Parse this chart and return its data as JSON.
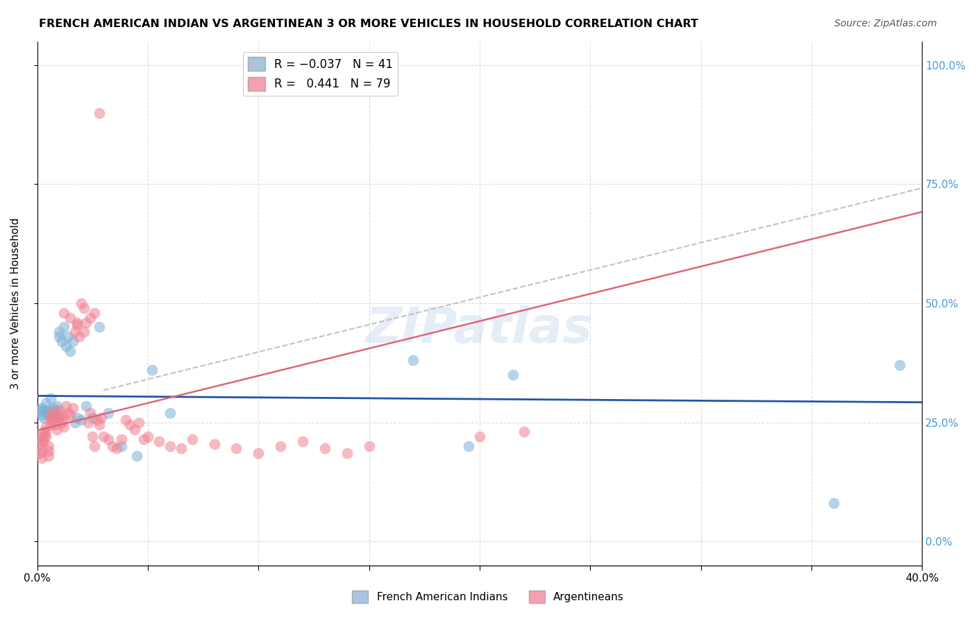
{
  "title": "FRENCH AMERICAN INDIAN VS ARGENTINEAN 3 OR MORE VEHICLES IN HOUSEHOLD CORRELATION CHART",
  "source": "Source: ZipAtlas.com",
  "ylabel": "3 or more Vehicles in Household",
  "ytick_values": [
    0.0,
    0.25,
    0.5,
    0.75,
    1.0
  ],
  "xlim": [
    0.0,
    0.4
  ],
  "ylim": [
    -0.05,
    1.05
  ],
  "blue_R": -0.037,
  "pink_R": 0.441,
  "blue_color": "#7bafd4",
  "pink_color": "#f08090",
  "blue_line_color": "#2255aa",
  "pink_line_color": "#dd6677",
  "gray_dash_color": "#bbbbbb",
  "watermark": "ZIPatlas",
  "blue_legend_color": "#a8c4e0",
  "pink_legend_color": "#f4a0b0",
  "blue_points_x": [
    0.001,
    0.002,
    0.002,
    0.003,
    0.003,
    0.004,
    0.004,
    0.005,
    0.005,
    0.006,
    0.006,
    0.007,
    0.007,
    0.008,
    0.008,
    0.009,
    0.009,
    0.01,
    0.01,
    0.011,
    0.012,
    0.013,
    0.014,
    0.015,
    0.016,
    0.017,
    0.018,
    0.02,
    0.022,
    0.025,
    0.028,
    0.032,
    0.038,
    0.045,
    0.052,
    0.06,
    0.17,
    0.195,
    0.215,
    0.36,
    0.39
  ],
  "blue_points_y": [
    0.275,
    0.28,
    0.265,
    0.275,
    0.26,
    0.29,
    0.27,
    0.265,
    0.275,
    0.26,
    0.3,
    0.27,
    0.28,
    0.265,
    0.275,
    0.26,
    0.285,
    0.43,
    0.44,
    0.42,
    0.45,
    0.41,
    0.43,
    0.4,
    0.42,
    0.25,
    0.26,
    0.255,
    0.285,
    0.26,
    0.45,
    0.27,
    0.2,
    0.18,
    0.36,
    0.27,
    0.38,
    0.2,
    0.35,
    0.08,
    0.37
  ],
  "pink_points_x": [
    0.001,
    0.001,
    0.001,
    0.002,
    0.002,
    0.002,
    0.003,
    0.003,
    0.003,
    0.004,
    0.004,
    0.004,
    0.005,
    0.005,
    0.005,
    0.006,
    0.006,
    0.006,
    0.007,
    0.007,
    0.008,
    0.008,
    0.009,
    0.009,
    0.01,
    0.01,
    0.011,
    0.011,
    0.012,
    0.012,
    0.013,
    0.014,
    0.015,
    0.016,
    0.017,
    0.018,
    0.019,
    0.02,
    0.021,
    0.022,
    0.023,
    0.024,
    0.025,
    0.026,
    0.027,
    0.028,
    0.029,
    0.03,
    0.032,
    0.034,
    0.036,
    0.038,
    0.04,
    0.042,
    0.044,
    0.046,
    0.048,
    0.05,
    0.055,
    0.06,
    0.065,
    0.07,
    0.08,
    0.09,
    0.1,
    0.11,
    0.12,
    0.13,
    0.14,
    0.15,
    0.012,
    0.015,
    0.018,
    0.021,
    0.024,
    0.026,
    0.028,
    0.2,
    0.22
  ],
  "pink_points_y": [
    0.22,
    0.2,
    0.185,
    0.21,
    0.19,
    0.175,
    0.23,
    0.22,
    0.21,
    0.24,
    0.23,
    0.22,
    0.19,
    0.18,
    0.2,
    0.265,
    0.255,
    0.245,
    0.27,
    0.26,
    0.255,
    0.245,
    0.235,
    0.265,
    0.275,
    0.26,
    0.25,
    0.265,
    0.24,
    0.255,
    0.285,
    0.27,
    0.265,
    0.28,
    0.44,
    0.46,
    0.43,
    0.5,
    0.49,
    0.46,
    0.25,
    0.27,
    0.22,
    0.2,
    0.255,
    0.245,
    0.26,
    0.22,
    0.215,
    0.2,
    0.195,
    0.215,
    0.255,
    0.245,
    0.235,
    0.25,
    0.215,
    0.22,
    0.21,
    0.2,
    0.195,
    0.215,
    0.205,
    0.195,
    0.185,
    0.2,
    0.21,
    0.195,
    0.185,
    0.2,
    0.48,
    0.47,
    0.455,
    0.44,
    0.47,
    0.48,
    0.9,
    0.22,
    0.23
  ]
}
